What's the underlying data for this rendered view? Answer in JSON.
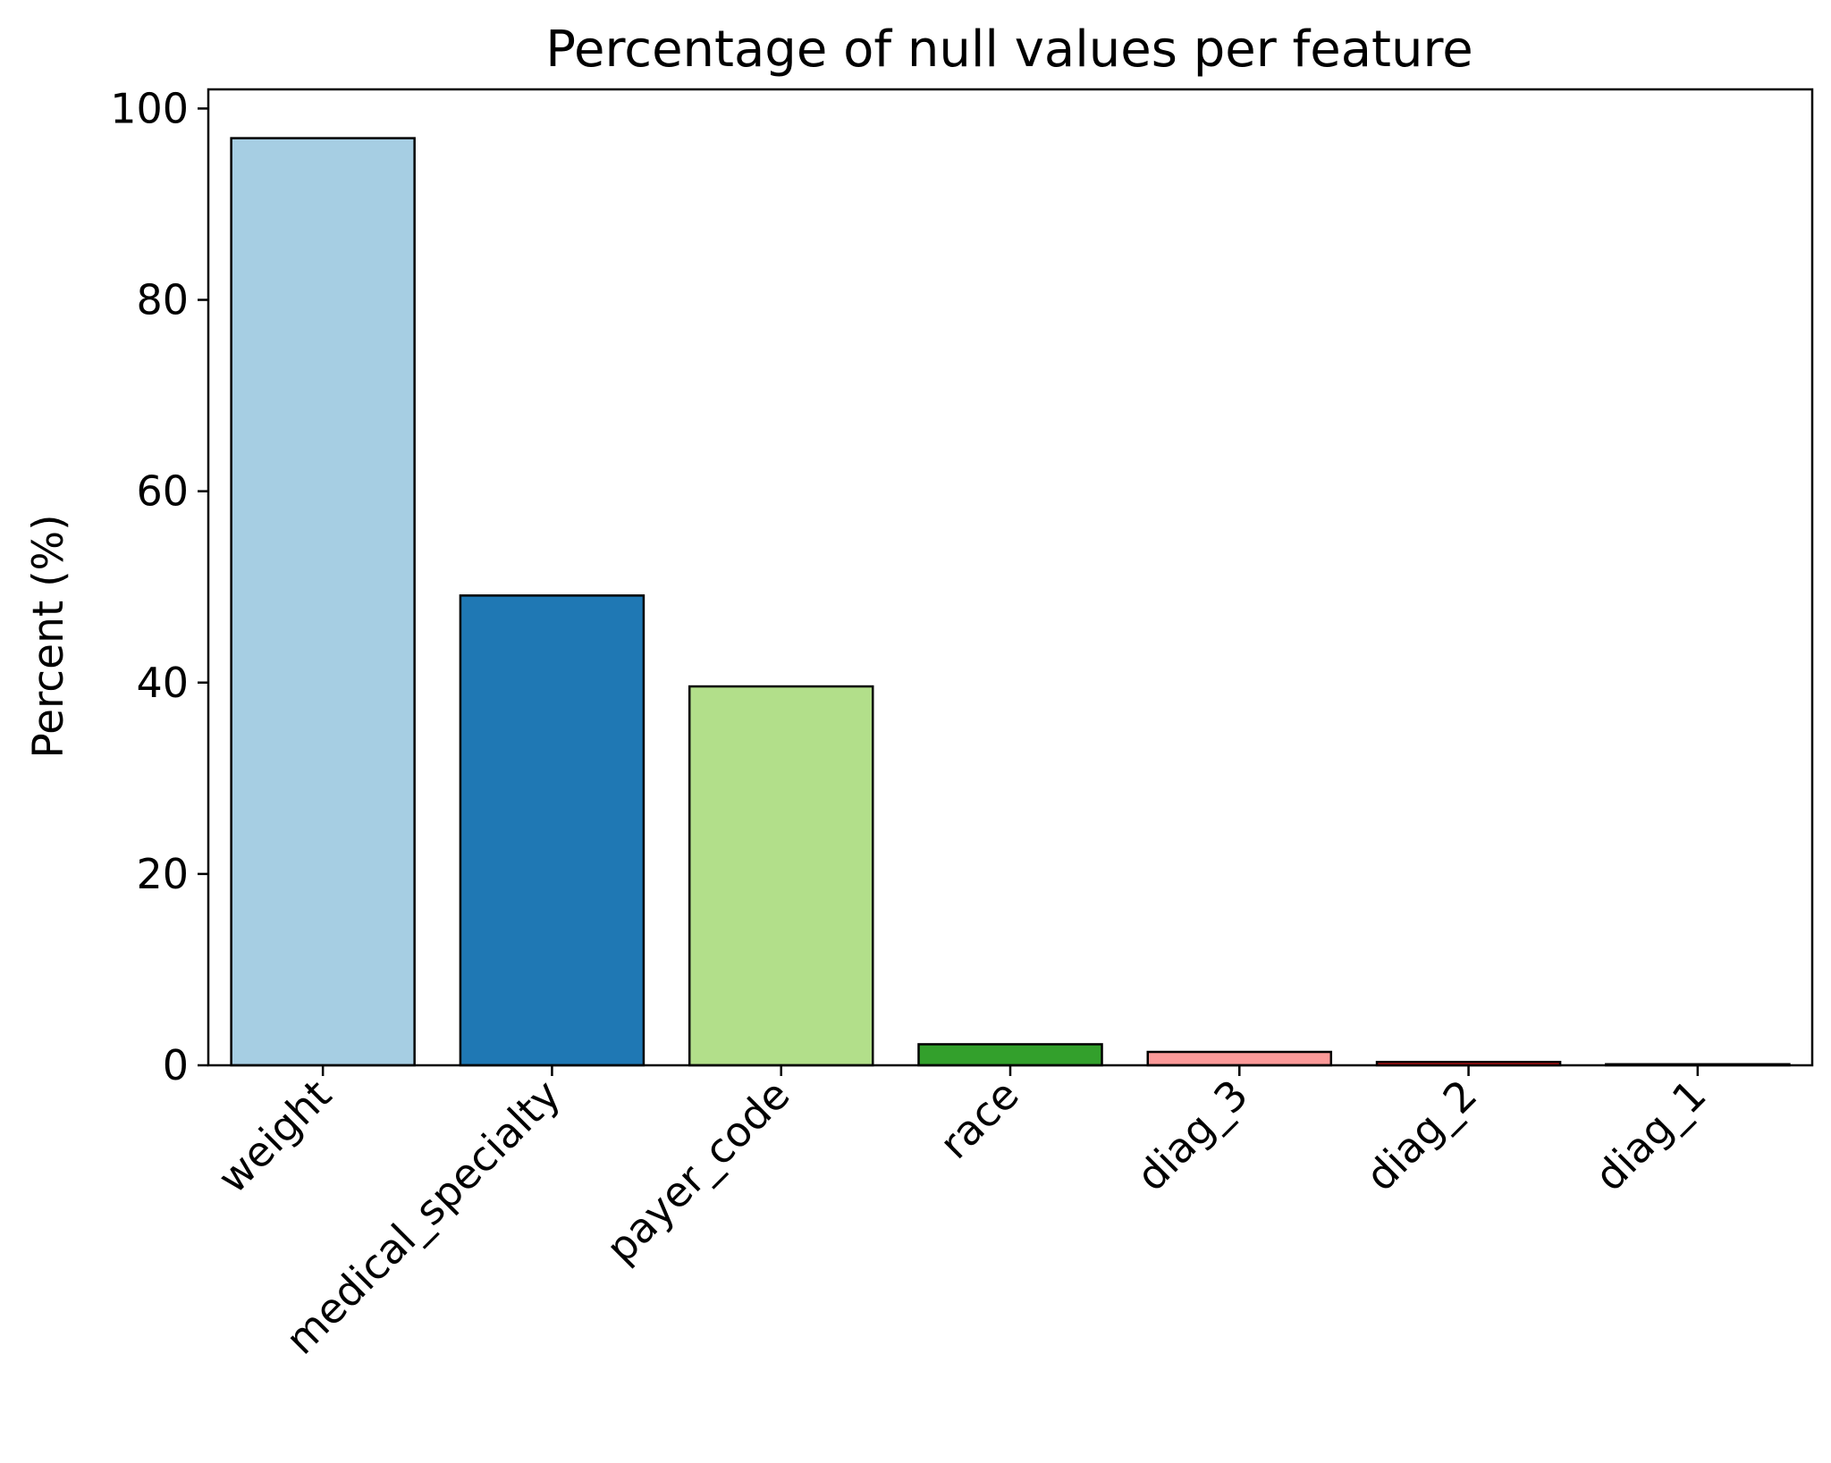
{
  "chart_data": {
    "type": "bar",
    "title": "Percentage of null values per feature",
    "xlabel": "",
    "ylabel": "Percent (%)",
    "categories": [
      "weight",
      "medical_specialty",
      "payer_code",
      "race",
      "diag_3",
      "diag_2",
      "diag_1"
    ],
    "values": [
      96.9,
      49.1,
      39.6,
      2.2,
      1.4,
      0.35,
      0.02
    ],
    "colors": [
      "#a6cee3",
      "#1f78b4",
      "#b2df8a",
      "#33a02c",
      "#fb9a99",
      "#e31a1c",
      "#fdbf6f"
    ],
    "edgecolor": "#000000",
    "ylim": [
      0,
      102
    ],
    "yticks": [
      0,
      20,
      40,
      60,
      80,
      100
    ],
    "grid": false,
    "xtick_rotation": 45
  }
}
